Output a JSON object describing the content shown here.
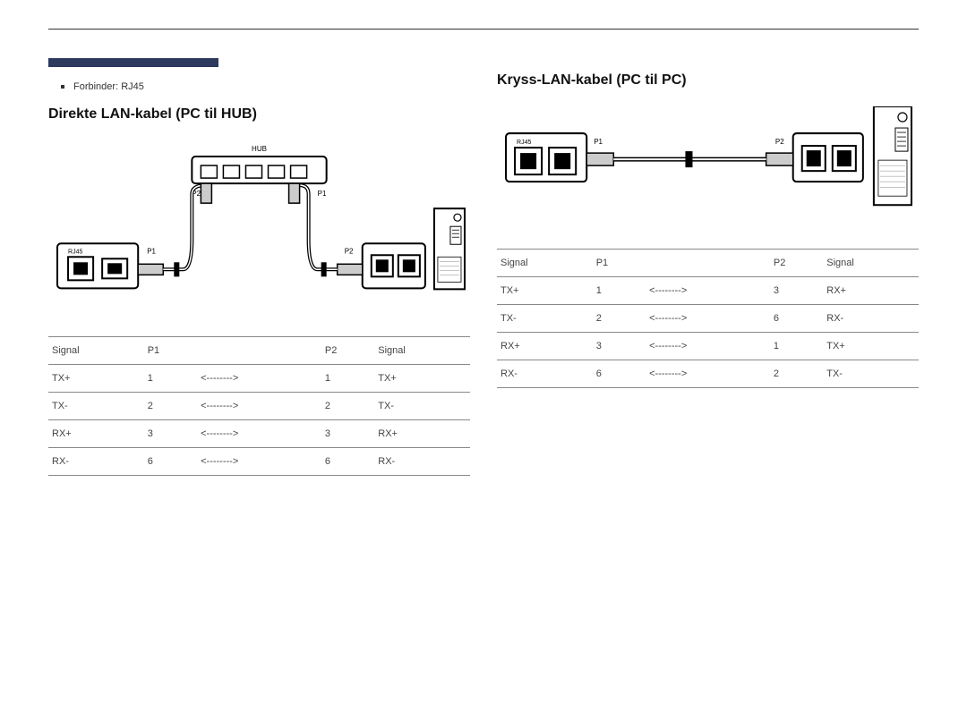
{
  "page": {
    "top_bar_color": "#2d3a5e",
    "rule_color": "#333333",
    "text_color": "#333333",
    "bg_color": "#ffffff"
  },
  "left": {
    "bullet": "Forbinder: RJ45",
    "title": "Direkte LAN-kabel (PC til HUB)",
    "diagram": {
      "hub_label": "HUB",
      "rj45_label": "RJ45",
      "p1_label": "P1",
      "p2_label": "P2",
      "p1_right": "P1",
      "p2_left": "P2"
    },
    "table": {
      "columns": [
        "Signal",
        "P1",
        "",
        "P2",
        "Signal"
      ],
      "rows": [
        [
          "TX+",
          "1",
          "<-------->",
          "1",
          "TX+"
        ],
        [
          "TX-",
          "2",
          "<-------->",
          "2",
          "TX-"
        ],
        [
          "RX+",
          "3",
          "<-------->",
          "3",
          "RX+"
        ],
        [
          "RX-",
          "6",
          "<-------->",
          "6",
          "RX-"
        ]
      ]
    }
  },
  "right": {
    "title": "Kryss-LAN-kabel (PC til PC)",
    "diagram": {
      "rj45_label": "RJ45",
      "p1_label": "P1",
      "p2_label": "P2"
    },
    "table": {
      "columns": [
        "Signal",
        "P1",
        "",
        "P2",
        "Signal"
      ],
      "rows": [
        [
          "TX+",
          "1",
          "<-------->",
          "3",
          "RX+"
        ],
        [
          "TX-",
          "2",
          "<-------->",
          "6",
          "RX-"
        ],
        [
          "RX+",
          "3",
          "<-------->",
          "1",
          "TX+"
        ],
        [
          "RX-",
          "6",
          "<-------->",
          "2",
          "TX-"
        ]
      ]
    }
  }
}
